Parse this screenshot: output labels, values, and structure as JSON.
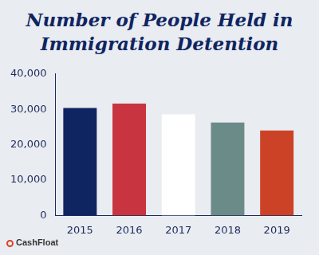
{
  "chart_data": {
    "type": "bar",
    "title": "Number of People Held in Immigration Detention",
    "categories": [
      "2015",
      "2016",
      "2017",
      "2018",
      "2019"
    ],
    "values": [
      30400,
      31600,
      28600,
      26300,
      24000
    ],
    "colors": [
      "#0f2561",
      "#c8343f",
      "#ffffff",
      "#6b8b89",
      "#cc4226"
    ],
    "ylim": [
      0,
      40000
    ],
    "yticks": [
      0,
      {
        "value": 10000,
        "label": "10,000"
      },
      {
        "value": 20000,
        "label": "20,000"
      },
      {
        "value": 30000,
        "label": "30,000"
      },
      {
        "value": 40000,
        "label": "40,000"
      }
    ],
    "grid": false,
    "annotations": [
      "CashFloat"
    ]
  }
}
